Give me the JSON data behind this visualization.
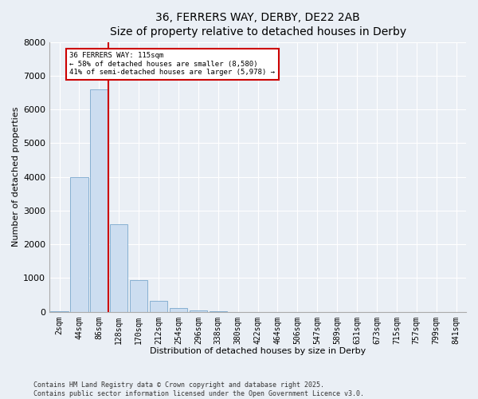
{
  "title": "36, FERRERS WAY, DERBY, DE22 2AB",
  "subtitle": "Size of property relative to detached houses in Derby",
  "xlabel": "Distribution of detached houses by size in Derby",
  "ylabel": "Number of detached properties",
  "categories": [
    "2sqm",
    "44sqm",
    "86sqm",
    "128sqm",
    "170sqm",
    "212sqm",
    "254sqm",
    "296sqm",
    "338sqm",
    "380sqm",
    "422sqm",
    "464sqm",
    "506sqm",
    "547sqm",
    "589sqm",
    "631sqm",
    "673sqm",
    "715sqm",
    "757sqm",
    "799sqm",
    "841sqm"
  ],
  "values": [
    10,
    4000,
    6600,
    2600,
    950,
    330,
    120,
    50,
    15,
    5,
    2,
    0,
    0,
    0,
    0,
    0,
    0,
    0,
    0,
    0,
    0
  ],
  "bar_color": "#ccddf0",
  "bar_edge_color": "#7aa8cc",
  "vline_color": "#cc0000",
  "annotation_title": "36 FERRERS WAY: 115sqm",
  "annotation_line1": "← 58% of detached houses are smaller (8,580)",
  "annotation_line2": "41% of semi-detached houses are larger (5,978) →",
  "annotation_box_color": "#cc0000",
  "ylim": [
    0,
    8000
  ],
  "yticks": [
    0,
    1000,
    2000,
    3000,
    4000,
    5000,
    6000,
    7000,
    8000
  ],
  "footer_line1": "Contains HM Land Registry data © Crown copyright and database right 2025.",
  "footer_line2": "Contains public sector information licensed under the Open Government Licence v3.0.",
  "bg_color": "#eaeff5",
  "plot_bg_color": "#eaeff5",
  "grid_color": "#ffffff",
  "title_fontsize": 10,
  "subtitle_fontsize": 9,
  "ylabel_fontsize": 8,
  "xlabel_fontsize": 8,
  "tick_fontsize": 7,
  "footer_fontsize": 6
}
